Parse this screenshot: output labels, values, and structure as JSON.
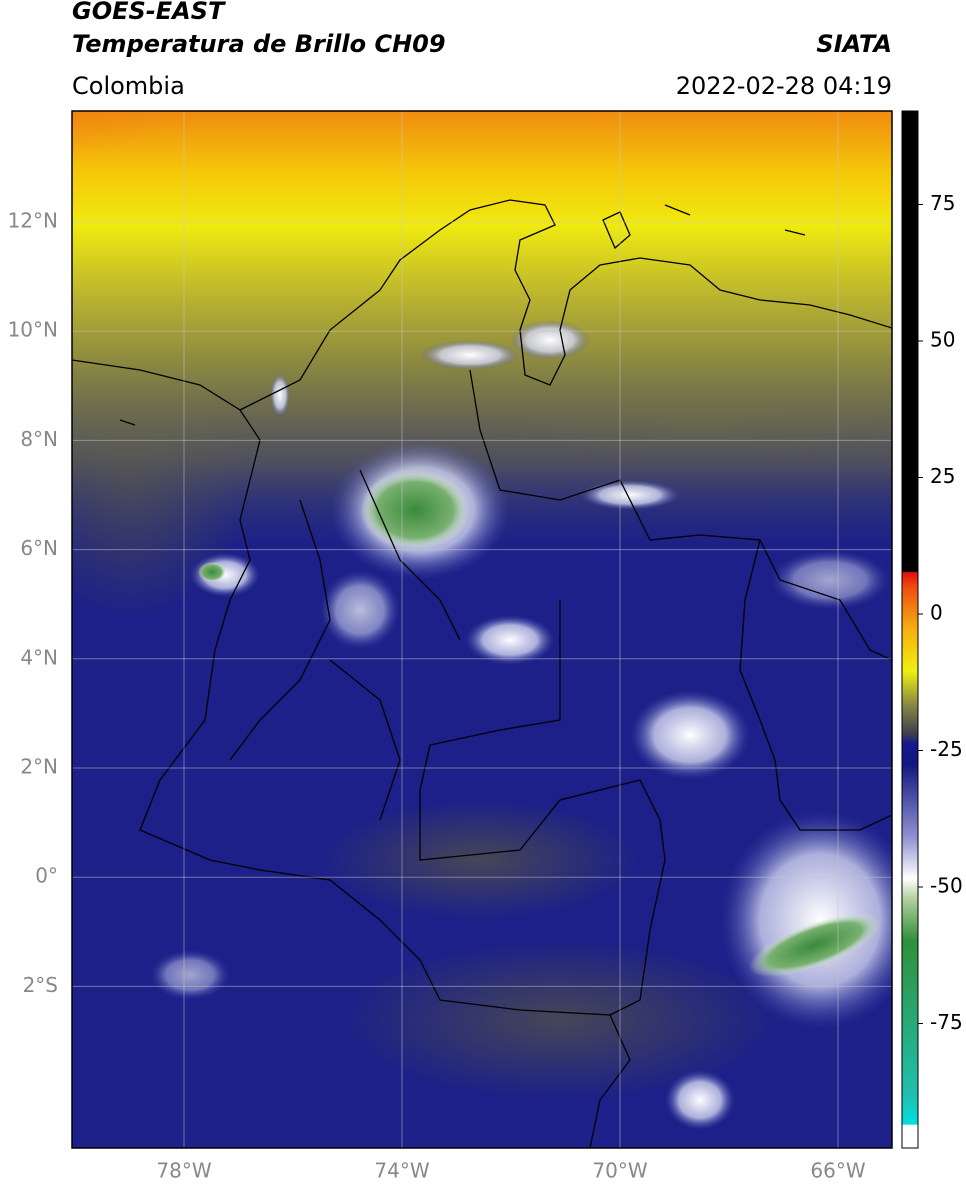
{
  "header": {
    "title": "GOES-EAST",
    "subtitle": "Temperatura de Brillo CH09",
    "agency": "SIATA",
    "region": "Colombia",
    "timestamp": "2022-02-28 04:19"
  },
  "map": {
    "lat_labels": [
      "12°N",
      "10°N",
      "8°N",
      "6°N",
      "4°N",
      "2°N",
      "0°",
      "2°S"
    ],
    "lon_labels": [
      "78°W",
      "74°W",
      "70°W",
      "66°W"
    ]
  },
  "colorbar": {
    "ticks": [
      75,
      50,
      25,
      0,
      -25,
      -50,
      -75
    ]
  }
}
